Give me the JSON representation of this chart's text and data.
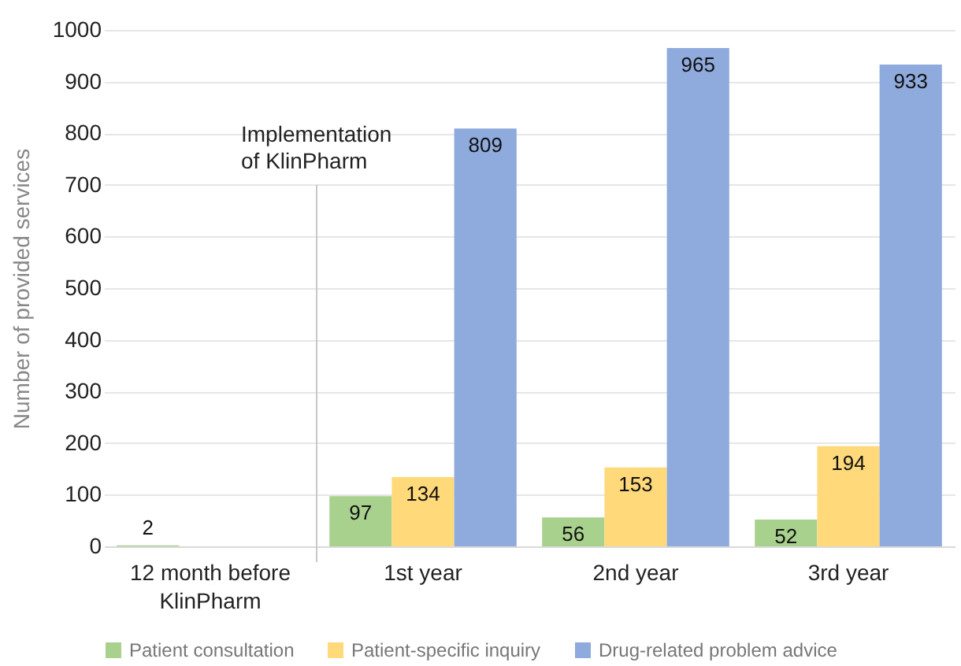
{
  "chart_data": {
    "type": "bar",
    "ylabel": "Number of provided services",
    "categories": [
      "12 month before KlinPharm",
      "1st year",
      "2nd year",
      "3rd year"
    ],
    "series": [
      {
        "name": "Patient consultation",
        "color": "#a9d18e",
        "values": [
          2,
          97,
          56,
          52
        ]
      },
      {
        "name": "Patient-specific inquiry",
        "color": "#ffd97a",
        "values": [
          null,
          134,
          153,
          194
        ]
      },
      {
        "name": "Drug-related problem advice",
        "color": "#8faadc",
        "values": [
          null,
          809,
          965,
          933
        ]
      }
    ],
    "ylim": [
      0,
      1000
    ],
    "yticks": [
      0,
      100,
      200,
      300,
      400,
      500,
      600,
      700,
      800,
      900,
      {
        "value": 1000,
        "label": "1000"
      }
    ],
    "grid": "y",
    "legend": "bottom",
    "data_labels": true,
    "annotations": [
      "Implementation of KlinPharm"
    ]
  }
}
